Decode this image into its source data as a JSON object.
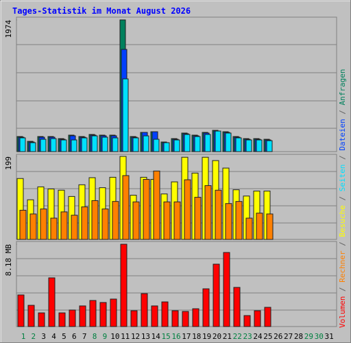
{
  "chart_data": [
    {
      "type": "bar",
      "title": "Tages-Statistik im Monat August 2026",
      "categories": [
        "1",
        "2",
        "3",
        "4",
        "5",
        "6",
        "7",
        "8",
        "9",
        "10",
        "11",
        "12",
        "13",
        "14",
        "15",
        "16",
        "17",
        "18",
        "19",
        "20",
        "21",
        "22",
        "23",
        "24",
        "25",
        "26",
        "27",
        "28",
        "29",
        "30",
        "31"
      ],
      "category_colors": [
        "#008040",
        "#008040",
        "#000000",
        "#000000",
        "#000000",
        "#000000",
        "#000000",
        "#008040",
        "#008040",
        "#000000",
        "#000000",
        "#000000",
        "#000000",
        "#000000",
        "#008040",
        "#008040",
        "#000000",
        "#000000",
        "#000000",
        "#000000",
        "#000000",
        "#008040",
        "#008040",
        "#000000",
        "#000000",
        "#000000",
        "#000000",
        "#000000",
        "#008040",
        "#008040",
        "#000000"
      ],
      "legend_separator": " / ",
      "ylim": [
        0,
        1974
      ],
      "yticks": [
        1974
      ],
      "series": [
        {
          "name": "Anfragen",
          "color": "#00805c",
          "values": [
            226,
            154,
            226,
            226,
            195,
            247,
            226,
            257,
            247,
            247,
            1974,
            226,
            288,
            298,
            144,
            195,
            278,
            247,
            288,
            319,
            298,
            226,
            195,
            195,
            185,
            null,
            null,
            null,
            null,
            null,
            null
          ]
        },
        {
          "name": "Dateien",
          "color": "#0040ff",
          "values": [
            216,
            144,
            216,
            216,
            185,
            237,
            216,
            247,
            237,
            237,
            1532,
            216,
            288,
            298,
            134,
            185,
            268,
            237,
            278,
            309,
            288,
            216,
            185,
            185,
            175,
            null,
            null,
            null,
            null,
            null,
            null
          ]
        },
        {
          "name": "Seiten",
          "color": "#00e0ff",
          "values": [
            206,
            134,
            185,
            195,
            175,
            175,
            206,
            236,
            216,
            206,
            1090,
            206,
            236,
            185,
            134,
            175,
            257,
            226,
            257,
            308,
            278,
            206,
            175,
            175,
            164,
            null,
            null,
            null,
            null,
            null,
            null
          ]
        }
      ]
    },
    {
      "type": "bar",
      "ylim": [
        0,
        199
      ],
      "yticks": [
        199
      ],
      "series": [
        {
          "name": "Besuche",
          "color": "#ffff00",
          "values": [
            146,
            95,
            126,
            121,
            118,
            103,
            131,
            148,
            124,
            149,
            199,
            106,
            149,
            144,
            109,
            138,
            197,
            159,
            197,
            189,
            171,
            119,
            104,
            116,
            116,
            null,
            null,
            null,
            null,
            null,
            null
          ]
        },
        {
          "name": "Rechner",
          "color": "#ff8000",
          "values": [
            70,
            61,
            73,
            51,
            66,
            58,
            78,
            93,
            73,
            91,
            153,
            90,
            144,
            164,
            90,
            90,
            143,
            101,
            129,
            118,
            86,
            91,
            51,
            63,
            61,
            null,
            null,
            null,
            null,
            null,
            null
          ]
        }
      ]
    },
    {
      "type": "bar",
      "ylim": [
        0,
        8.18
      ],
      "yticks": [
        {
          "value": 8.18,
          "label": "8.18 MB"
        }
      ],
      "series": [
        {
          "name": "Volumen",
          "color": "#ff0000",
          "values": [
            3.14,
            2.11,
            1.36,
            4.84,
            1.36,
            1.64,
            2.05,
            2.59,
            2.39,
            2.73,
            8.18,
            1.57,
            3.27,
            2.05,
            2.45,
            1.57,
            1.5,
            1.77,
            3.75,
            6.2,
            7.36,
            3.89,
            1.09,
            1.57,
            1.91,
            null,
            null,
            null,
            null,
            null,
            null
          ]
        }
      ]
    }
  ]
}
